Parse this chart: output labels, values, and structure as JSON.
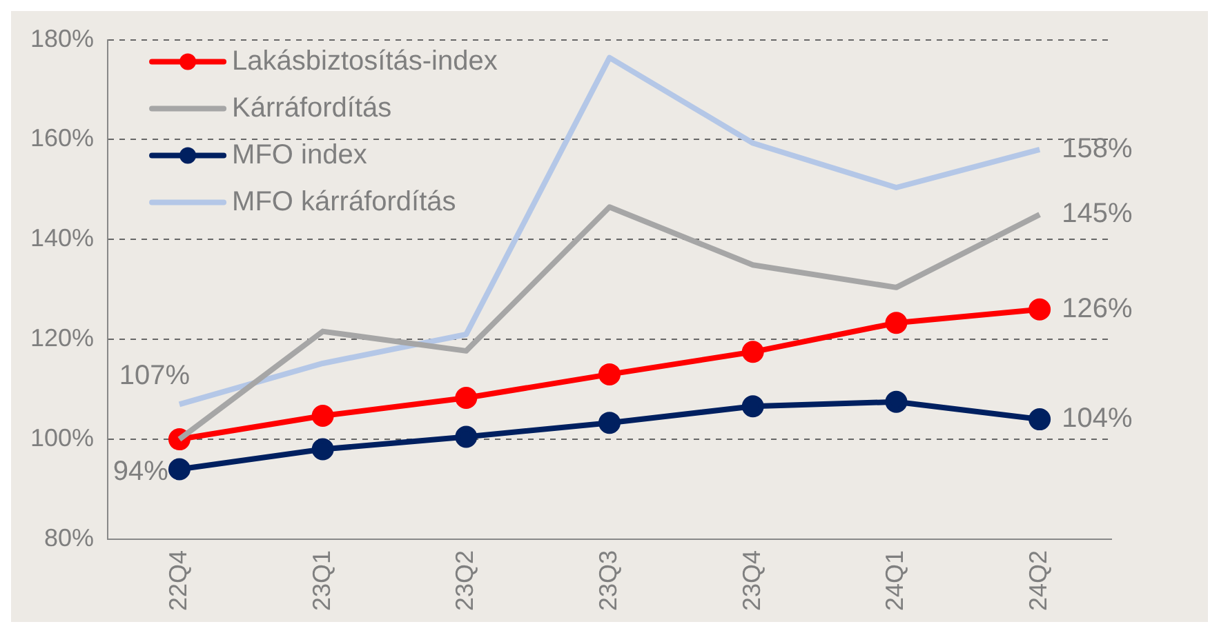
{
  "chart_data": {
    "type": "line",
    "categories": [
      "22Q4",
      "23Q1",
      "23Q2",
      "23Q3",
      "23Q4",
      "24Q1",
      "24Q2"
    ],
    "series": [
      {
        "name": "Lakásbiztosítás-index",
        "color": "#ff0000",
        "marker": "circle",
        "values": [
          100,
          104.7,
          108.3,
          113,
          117.5,
          123.3,
          126
        ],
        "value_labels": [
          null,
          null,
          null,
          null,
          null,
          null,
          "126%"
        ]
      },
      {
        "name": "Kárráfordítás",
        "color": "#a6a6a6",
        "marker": "none",
        "values": [
          100,
          121.6,
          117.7,
          146.5,
          134.9,
          130.4,
          145
        ],
        "value_labels": [
          null,
          null,
          null,
          null,
          null,
          null,
          "145%"
        ]
      },
      {
        "name": "MFO index",
        "color": "#002060",
        "marker": "circle",
        "values": [
          94,
          98,
          100.5,
          103.3,
          106.6,
          107.5,
          104
        ],
        "value_labels": [
          "94%",
          null,
          null,
          null,
          null,
          null,
          "104%"
        ]
      },
      {
        "name": "MFO kárráfordítás",
        "color": "#b4c7e7",
        "marker": "none",
        "values": [
          107,
          115.2,
          121,
          176.4,
          159.3,
          150.4,
          158
        ],
        "value_labels": [
          "107%",
          null,
          null,
          null,
          null,
          null,
          "158%"
        ]
      }
    ],
    "ylim": [
      80,
      180
    ],
    "yticks": [
      {
        "value": 80,
        "label": "80%"
      },
      {
        "value": 100,
        "label": "100%"
      },
      {
        "value": 120,
        "label": "120%"
      },
      {
        "value": 140,
        "label": "140%"
      },
      {
        "value": 160,
        "label": "160%"
      },
      {
        "value": 180,
        "label": "180%"
      }
    ],
    "grid": "y",
    "legend": "top left"
  }
}
